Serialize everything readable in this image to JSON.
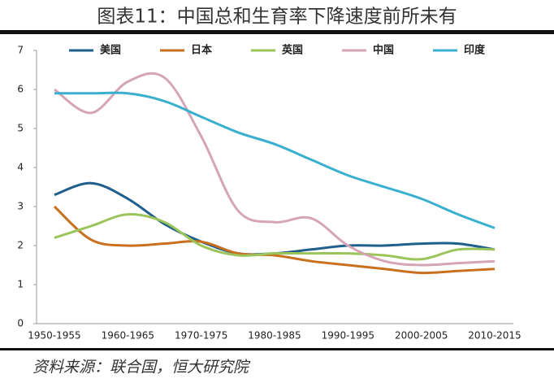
{
  "chart_data": {
    "type": "line",
    "title": "图表11：中国总和生育率下降速度前所未有",
    "source": "资料来源：联合国，恒大研究院",
    "categories": [
      "1950-1955",
      null,
      "1960-1965",
      null,
      "1970-1975",
      null,
      "1980-1985",
      null,
      "1990-1995",
      null,
      "2000-2005",
      null,
      "2010-2015"
    ],
    "series": [
      {
        "name": "美国",
        "color": "#1f5f8b",
        "values": [
          3.3,
          3.6,
          3.2,
          2.55,
          2.1,
          1.8,
          1.8,
          1.9,
          2.0,
          2.0,
          2.05,
          2.05,
          1.9
        ]
      },
      {
        "name": "日本",
        "color": "#c8701e",
        "values": [
          3.0,
          2.15,
          2.0,
          2.05,
          2.1,
          1.8,
          1.75,
          1.6,
          1.5,
          1.4,
          1.3,
          1.35,
          1.4
        ]
      },
      {
        "name": "英国",
        "color": "#9bc55a",
        "values": [
          2.2,
          2.5,
          2.8,
          2.6,
          2.0,
          1.75,
          1.8,
          1.8,
          1.8,
          1.75,
          1.65,
          1.9,
          1.9
        ]
      },
      {
        "name": "中国",
        "color": "#d5a5b5",
        "values": [
          6.0,
          5.4,
          6.2,
          6.3,
          4.8,
          2.9,
          2.6,
          2.7,
          2.0,
          1.6,
          1.5,
          1.55,
          1.6
        ]
      },
      {
        "name": "印度",
        "color": "#3ab0d0",
        "values": [
          5.9,
          5.9,
          5.9,
          5.7,
          5.3,
          4.9,
          4.6,
          4.2,
          3.8,
          3.5,
          3.2,
          2.8,
          2.45
        ]
      }
    ],
    "ylim": [
      0,
      7
    ],
    "yticks": [
      0,
      1,
      2,
      3,
      4,
      5,
      6,
      7
    ],
    "grid": false,
    "legend": "top"
  }
}
